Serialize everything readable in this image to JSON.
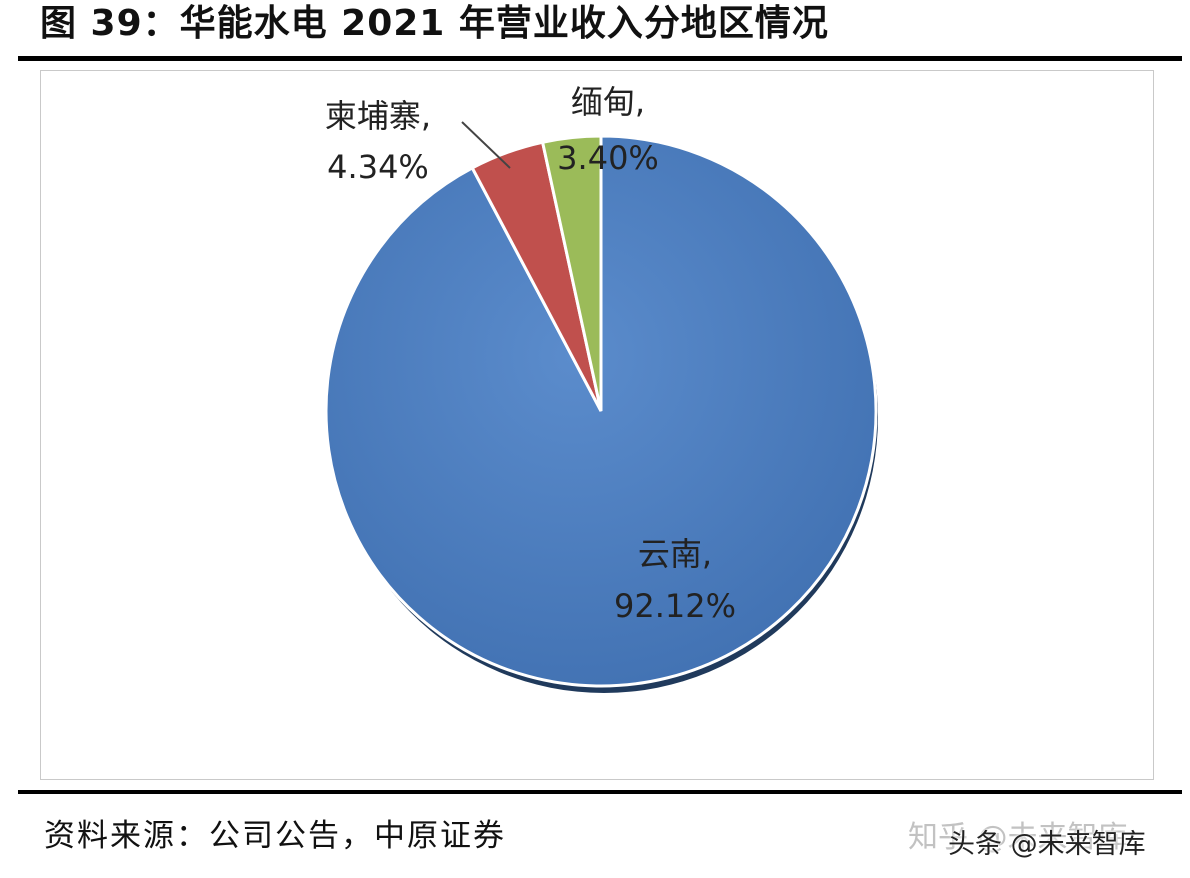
{
  "title": "图 39：华能水电 2021 年营业收入分地区情况",
  "source": "资料来源：公司公告，中原证券",
  "watermark": {
    "line1": "知乎 @未来智库",
    "line2": "头条 @未来智库"
  },
  "colors": {
    "yunnan": "#4a7cbf",
    "cambodia": "#c0504d",
    "myanmar": "#9bbb59"
  },
  "chart_data": {
    "type": "pie",
    "title": "",
    "slices": [
      {
        "name": "云南",
        "label_name": "云南,",
        "value": 92.12,
        "label_value": "92.12%"
      },
      {
        "name": "柬埔寨",
        "label_name": "柬埔寨,",
        "value": 4.34,
        "label_value": "4.34%"
      },
      {
        "name": "缅甸",
        "label_name": "缅甸,",
        "value": 3.4,
        "label_value": "3.40%"
      }
    ],
    "start_angle": "12 o'clock",
    "direction": "clockwise",
    "legend": "none"
  }
}
